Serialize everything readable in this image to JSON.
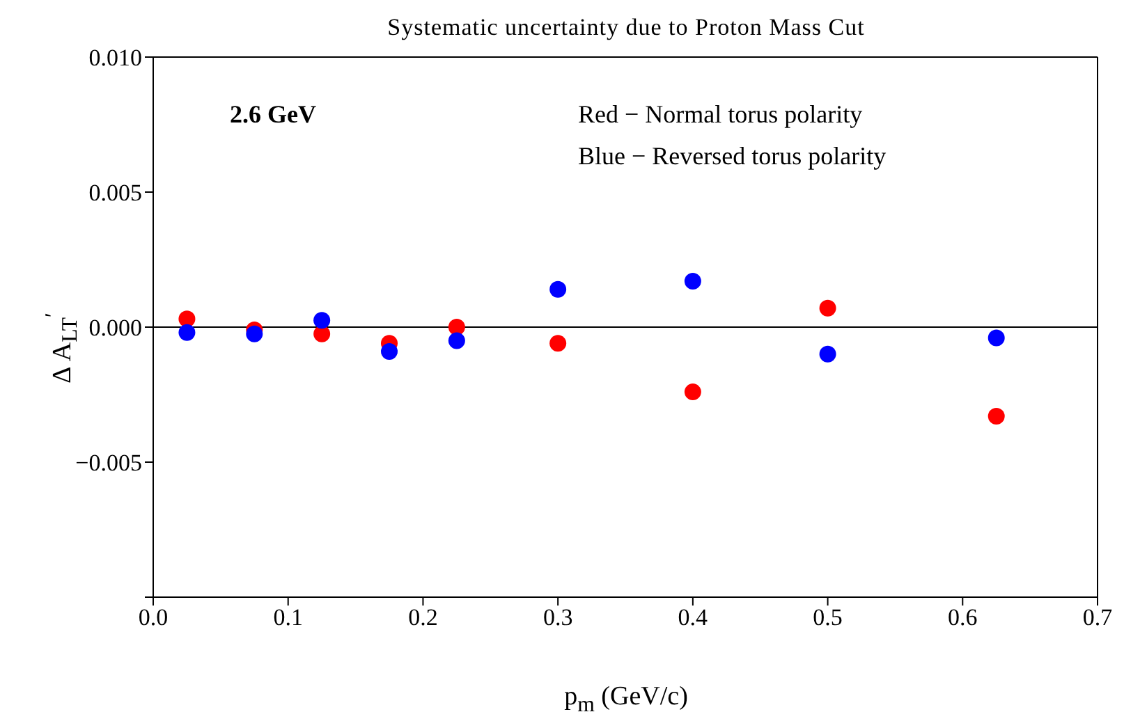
{
  "chart_data": {
    "type": "scatter",
    "title": "Systematic uncertainty due to Proton Mass Cut",
    "xlabel": "p$_{m}$ (GeV/c)",
    "ylabel": "Δ A$_{LT}$$^{′}$",
    "annotations": [
      "2.6 GeV",
      "Red − Normal torus polarity",
      "Blue − Reversed torus polarity"
    ],
    "x": [
      0.025,
      0.075,
      0.125,
      0.175,
      0.225,
      0.3,
      0.4,
      0.5,
      0.625
    ],
    "series": [
      {
        "color": "#ff0000",
        "values": [
          0.0003,
          -0.0001,
          -0.00025,
          -0.0006,
          0,
          -0.0006,
          -0.0024,
          0.0007,
          -0.0033
        ]
      },
      {
        "color": "#0000ff",
        "values": [
          -0.0002,
          -0.00025,
          0.00025,
          -0.0009,
          -0.0005,
          0.0014,
          0.0017,
          -0.001,
          -0.0004
        ]
      }
    ],
    "xlim": [
      0,
      0.7
    ],
    "xticks": [
      {
        "value": 0,
        "label": "0.0"
      },
      0.1,
      0.2,
      0.3,
      0.4,
      0.5,
      0.6,
      0.7
    ],
    "ylim": [
      -0.01,
      0.01
    ],
    "yticks": [
      {
        "value": -0.01,
        "label": null
      },
      {
        "value": -0.005,
        "label": "−0.005"
      },
      {
        "value": 0,
        "label": "0.000"
      },
      0.005,
      {
        "value": 0.01,
        "label": "0.010"
      }
    ],
    "ref_lines": [
      {
        "axis": "y",
        "value": 0,
        "color": "#000000"
      }
    ],
    "marker": "circle",
    "legend": false
  }
}
